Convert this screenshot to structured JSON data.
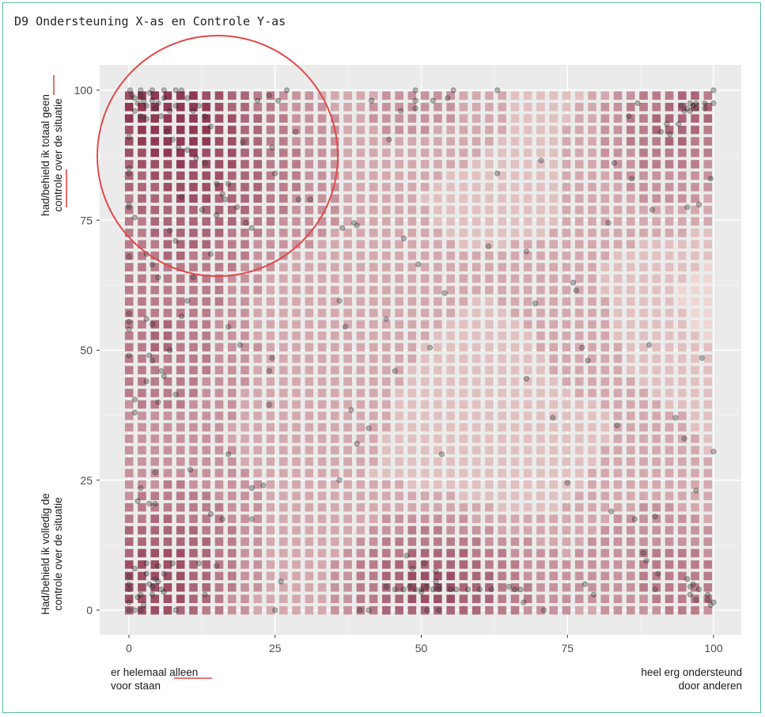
{
  "title": "D9 Ondersteuning X-as en Controle Y-as",
  "colors": {
    "panel_bg": "#ebebeb",
    "grid": "#ffffff",
    "density_low": "#fcece5",
    "density_high": "#8f3a52",
    "point": "#3a3a3a",
    "highlight_circle": "#e0494a",
    "frame_border": "#5bb8a3"
  },
  "chart_data": {
    "type": "scatter",
    "overlay": "2d-density-filled-contours",
    "xlim": [
      0,
      100
    ],
    "ylim": [
      0,
      100
    ],
    "x_ticks": [
      0,
      25,
      50,
      75,
      100
    ],
    "y_ticks": [
      0,
      25,
      50,
      75,
      100
    ],
    "x_tick_labels": [
      "0",
      "25",
      "50",
      "75",
      "100"
    ],
    "y_tick_labels": [
      "0",
      "25",
      "50",
      "75",
      "100"
    ],
    "x_label_left": [
      "er helemaal alleen",
      "voor staan"
    ],
    "x_label_right": [
      "heel erg ondersteund",
      "door anderen"
    ],
    "y_label_top": [
      "had/behield ik totaal geen",
      "controle over de situatie"
    ],
    "y_label_bottom": [
      "Had/behield ik volledig de",
      "controle over de situatie"
    ],
    "highlighted_words": [
      "geen",
      "controle",
      "alleen"
    ],
    "grid": true,
    "annotation": "red circle around top-left cluster",
    "points": [
      [
        0.2,
        100
      ],
      [
        0.5,
        99
      ],
      [
        1,
        98.5
      ],
      [
        1.5,
        97.5
      ],
      [
        2,
        99
      ],
      [
        2.5,
        98
      ],
      [
        3,
        97
      ],
      [
        3.5,
        99.5
      ],
      [
        4,
        98
      ],
      [
        1,
        96
      ],
      [
        2,
        95
      ],
      [
        3,
        94.5
      ],
      [
        4.5,
        96.5
      ],
      [
        5,
        97.5
      ],
      [
        6,
        98.5
      ],
      [
        5.5,
        95
      ],
      [
        7,
        96
      ],
      [
        8,
        97
      ],
      [
        9,
        100
      ],
      [
        10,
        98.5
      ],
      [
        11,
        96
      ],
      [
        12,
        97
      ],
      [
        13,
        95
      ],
      [
        14,
        93
      ],
      [
        6.5,
        92
      ],
      [
        7.5,
        90.5
      ],
      [
        8.5,
        89
      ],
      [
        10,
        88.5
      ],
      [
        11.5,
        87
      ],
      [
        13,
        86
      ],
      [
        15,
        82
      ],
      [
        16,
        80
      ],
      [
        17,
        82
      ],
      [
        18.5,
        77.5
      ],
      [
        19.5,
        90
      ],
      [
        20,
        74.5
      ],
      [
        21,
        73.5
      ],
      [
        22,
        98
      ],
      [
        24,
        99
      ],
      [
        24.5,
        89
      ],
      [
        25,
        84
      ],
      [
        25.5,
        98
      ],
      [
        27,
        100
      ],
      [
        28.5,
        92
      ],
      [
        29,
        79
      ],
      [
        31,
        79
      ],
      [
        0,
        91
      ],
      [
        0,
        85
      ],
      [
        0,
        84
      ],
      [
        0,
        78
      ],
      [
        0,
        77.5
      ],
      [
        1,
        75.5
      ],
      [
        0,
        68
      ],
      [
        3,
        68.5
      ],
      [
        4,
        66.5
      ],
      [
        5,
        64
      ],
      [
        7,
        73
      ],
      [
        8,
        71
      ],
      [
        9,
        79.5
      ],
      [
        11,
        64
      ],
      [
        12.5,
        77
      ],
      [
        14,
        68.5
      ],
      [
        15,
        76
      ],
      [
        16.5,
        79
      ],
      [
        2,
        100
      ],
      [
        4,
        100
      ],
      [
        6,
        100
      ],
      [
        8,
        100
      ],
      [
        0,
        57
      ],
      [
        0,
        55.5
      ],
      [
        0,
        54
      ],
      [
        0,
        49
      ],
      [
        1,
        40.5
      ],
      [
        1,
        38
      ],
      [
        2,
        23.5
      ],
      [
        3,
        44
      ],
      [
        3,
        56
      ],
      [
        3.5,
        49
      ],
      [
        4,
        55
      ],
      [
        4,
        48
      ],
      [
        4.5,
        26.5
      ],
      [
        5,
        40
      ],
      [
        5.5,
        46
      ],
      [
        6,
        45
      ],
      [
        7,
        50
      ],
      [
        8,
        41.5
      ],
      [
        9,
        56.5
      ],
      [
        10,
        59.5
      ],
      [
        10.5,
        27
      ],
      [
        12,
        9
      ],
      [
        13,
        3
      ],
      [
        14,
        18.5
      ],
      [
        15,
        8.5
      ],
      [
        16,
        17.5
      ],
      [
        17,
        54.5
      ],
      [
        17,
        30
      ],
      [
        19,
        51
      ],
      [
        21,
        17.5
      ],
      [
        21,
        23.5
      ],
      [
        23,
        24
      ],
      [
        24,
        46
      ],
      [
        24.5,
        48.5
      ],
      [
        24,
        39.5
      ],
      [
        25,
        0
      ],
      [
        26,
        5.5
      ],
      [
        0,
        6.5
      ],
      [
        0,
        5
      ],
      [
        0,
        4
      ],
      [
        0,
        1.5
      ],
      [
        0,
        0
      ],
      [
        1,
        8
      ],
      [
        1.5,
        2.5
      ],
      [
        2,
        3
      ],
      [
        2.5,
        1
      ],
      [
        3,
        7
      ],
      [
        3.5,
        5
      ],
      [
        4,
        4.5
      ],
      [
        4,
        3
      ],
      [
        4.5,
        6
      ],
      [
        5,
        5.5
      ],
      [
        5.5,
        4
      ],
      [
        6,
        3.5
      ],
      [
        6,
        7
      ],
      [
        5,
        8.5
      ],
      [
        3,
        9
      ],
      [
        7.5,
        9
      ],
      [
        8,
        0
      ],
      [
        2,
        0
      ],
      [
        1,
        0
      ],
      [
        3.5,
        20.5
      ],
      [
        4.5,
        20.5
      ],
      [
        1.5,
        21
      ],
      [
        36,
        59.5
      ],
      [
        36.5,
        73.5
      ],
      [
        36,
        25
      ],
      [
        37,
        54.5
      ],
      [
        38,
        38.5
      ],
      [
        38.5,
        74.5
      ],
      [
        39,
        32
      ],
      [
        39,
        74
      ],
      [
        39.5,
        0
      ],
      [
        41,
        35
      ],
      [
        41,
        0
      ],
      [
        41.5,
        98
      ],
      [
        44,
        56
      ],
      [
        44.5,
        90.5
      ],
      [
        45.5,
        46
      ],
      [
        46.5,
        96
      ],
      [
        47,
        71.5
      ],
      [
        47.5,
        10.5
      ],
      [
        48,
        4.5
      ],
      [
        48.5,
        8
      ],
      [
        49,
        100
      ],
      [
        49,
        98
      ],
      [
        49,
        96.5
      ],
      [
        49.5,
        66.5
      ],
      [
        50,
        4
      ],
      [
        50.5,
        9
      ],
      [
        51,
        0
      ],
      [
        51,
        4.5
      ],
      [
        51.5,
        50.5
      ],
      [
        52,
        98
      ],
      [
        52.5,
        5.5
      ],
      [
        52.5,
        7.5
      ],
      [
        53,
        0
      ],
      [
        53,
        4
      ],
      [
        53.5,
        30
      ],
      [
        54,
        61
      ],
      [
        54.5,
        98.5
      ],
      [
        55.5,
        100
      ],
      [
        44,
        4.5
      ],
      [
        45.5,
        4
      ],
      [
        47,
        4
      ],
      [
        49,
        4
      ],
      [
        50,
        3.5
      ],
      [
        52,
        4
      ],
      [
        53,
        4.5
      ],
      [
        55,
        4
      ],
      [
        56,
        4
      ],
      [
        58,
        4
      ],
      [
        60,
        4
      ],
      [
        61.5,
        70
      ],
      [
        62,
        4
      ],
      [
        63,
        84
      ],
      [
        63,
        100
      ],
      [
        65,
        4.5
      ],
      [
        66,
        4
      ],
      [
        67,
        4
      ],
      [
        67.5,
        1.5
      ],
      [
        68,
        44.5
      ],
      [
        68,
        69
      ],
      [
        69.5,
        59
      ],
      [
        70.5,
        86.5
      ],
      [
        71,
        0
      ],
      [
        72.5,
        37
      ],
      [
        75,
        24.5
      ],
      [
        76,
        63
      ],
      [
        76.5,
        61.5
      ],
      [
        77.5,
        50.5
      ],
      [
        78,
        5
      ],
      [
        78.5,
        48
      ],
      [
        79.5,
        3
      ],
      [
        82,
        74.5
      ],
      [
        82.5,
        19
      ],
      [
        83,
        86
      ],
      [
        83.5,
        35.5
      ],
      [
        85.5,
        95
      ],
      [
        86,
        83
      ],
      [
        86.5,
        17.5
      ],
      [
        87,
        97.5
      ],
      [
        88,
        11
      ],
      [
        88.5,
        9.5
      ],
      [
        89,
        51
      ],
      [
        89.5,
        77
      ],
      [
        90,
        4
      ],
      [
        90,
        18
      ],
      [
        90.5,
        7
      ],
      [
        91,
        92
      ],
      [
        92,
        93.5
      ],
      [
        92.5,
        91.5
      ],
      [
        93.5,
        37
      ],
      [
        94,
        93.5
      ],
      [
        94.5,
        97
      ],
      [
        95,
        33
      ],
      [
        95.5,
        77.5
      ],
      [
        95.5,
        6
      ],
      [
        96,
        4.5
      ],
      [
        96,
        3
      ],
      [
        96.5,
        5
      ],
      [
        97,
        2
      ],
      [
        97,
        23
      ],
      [
        97.5,
        78
      ],
      [
        97.5,
        4
      ],
      [
        98,
        48.5
      ],
      [
        98.5,
        96.5
      ],
      [
        98.5,
        97.5
      ],
      [
        99,
        3
      ],
      [
        99,
        2
      ],
      [
        99.5,
        83
      ],
      [
        99.5,
        1
      ],
      [
        100,
        100
      ],
      [
        100,
        97.5
      ],
      [
        100,
        30.5
      ],
      [
        100,
        1.5
      ],
      [
        96,
        96
      ],
      [
        96.5,
        97
      ],
      [
        97,
        97.5
      ],
      [
        95.5,
        96.5
      ],
      [
        97,
        96.5
      ],
      [
        96,
        97.5
      ],
      [
        95,
        96
      ]
    ]
  }
}
